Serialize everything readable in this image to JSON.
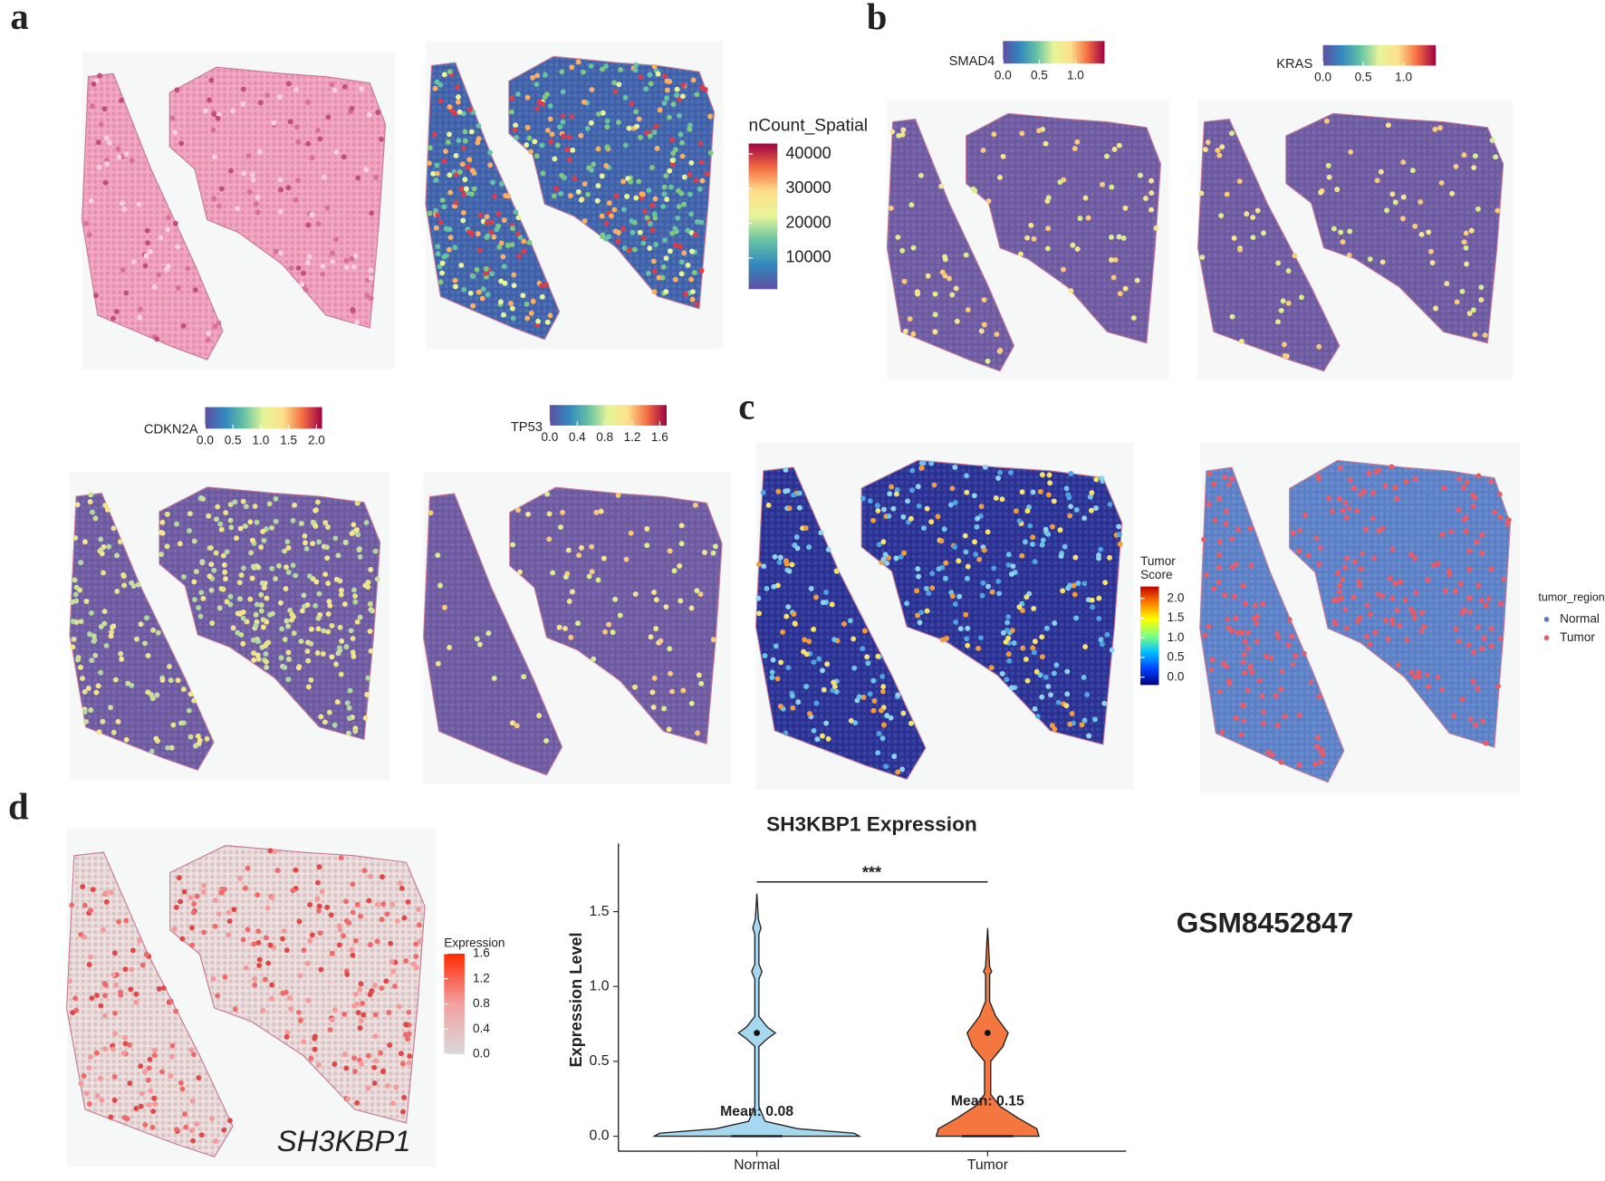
{
  "panel_labels": [
    "a",
    "b",
    "c",
    "d"
  ],
  "colorbars": [
    {
      "title": "nCount_Spatial",
      "orient": "v",
      "lim": [
        1000,
        43000
      ],
      "ticks": [
        10000,
        20000,
        30000,
        40000
      ],
      "colors": [
        "#5e4fa2",
        "#3288bd",
        "#66c2a5",
        "#e6f598",
        "#fee08b",
        "#f46d43",
        "#9e0142"
      ]
    },
    {
      "title": "SMAD4",
      "orient": "h",
      "lim": [
        0,
        1.4
      ],
      "ticks": [
        {
          "value": 0,
          "label": "0.0"
        },
        0.5,
        {
          "value": 1,
          "label": "1.0"
        }
      ],
      "colors": [
        "#5e4fa2",
        "#3288bd",
        "#66c2a5",
        "#e6f598",
        "#fee08b",
        "#f46d43",
        "#9e0142"
      ]
    },
    {
      "title": "KRAS",
      "orient": "h",
      "lim": [
        0,
        1.4
      ],
      "ticks": [
        {
          "value": 0,
          "label": "0.0"
        },
        0.5,
        {
          "value": 1,
          "label": "1.0"
        }
      ],
      "colors": [
        "#5e4fa2",
        "#3288bd",
        "#66c2a5",
        "#e6f598",
        "#fee08b",
        "#f46d43",
        "#9e0142"
      ]
    },
    {
      "title": "CDKN2A",
      "orient": "h",
      "lim": [
        0,
        2.1
      ],
      "ticks": [
        {
          "value": 0,
          "label": "0.0"
        },
        0.5,
        {
          "value": 1,
          "label": "1.0"
        },
        1.5,
        {
          "value": 2,
          "label": "2.0"
        }
      ],
      "colors": [
        "#5e4fa2",
        "#3288bd",
        "#66c2a5",
        "#e6f598",
        "#fee08b",
        "#f46d43",
        "#9e0142"
      ]
    },
    {
      "title": "TP53",
      "orient": "h",
      "lim": [
        0,
        1.7
      ],
      "ticks": [
        {
          "value": 0,
          "label": "0.0"
        },
        0.4,
        0.8,
        1.2,
        1.6
      ],
      "colors": [
        "#5e4fa2",
        "#3288bd",
        "#66c2a5",
        "#e6f598",
        "#fee08b",
        "#f46d43",
        "#9e0142"
      ]
    },
    {
      "title": [
        "Tumor",
        "Score"
      ],
      "orient": "v",
      "lim": [
        -0.2,
        2.3
      ],
      "ticks": [
        {
          "value": 0,
          "label": "0.0"
        },
        0.5,
        {
          "value": 1,
          "label": "1.0"
        },
        1.5,
        {
          "value": 2,
          "label": "2.0"
        }
      ],
      "colors": [
        "#00007f",
        "#0040ff",
        "#00c0ff",
        "#80ff80",
        "#ffff00",
        "#ff8000",
        "#c00000"
      ]
    },
    {
      "title": "Expression",
      "orient": "v",
      "lim": [
        0,
        1.6
      ],
      "ticks": [
        {
          "value": 0,
          "label": "0.0"
        },
        0.4,
        0.8,
        1.2,
        1.6
      ],
      "colors": [
        "#d9d9d9",
        "#f2a0a0",
        "#ff2a00"
      ]
    }
  ],
  "tumor_region": {
    "title": "tumor_region",
    "items": [
      {
        "name": "Normal",
        "color": "#5b7fc6"
      },
      {
        "name": "Tumor",
        "color": "#e85c6a"
      }
    ]
  },
  "map_label": "SH3KBP1",
  "sample_id": "GSM8452847",
  "chart_data": {
    "type": "violin",
    "title": "SH3KBP1 Expression",
    "y_label": "Expression Level",
    "categories": [
      "Normal",
      "Tumor"
    ],
    "colors": [
      "#a6d8f0",
      "#f4773f"
    ],
    "maxima": [
      1.62,
      1.39
    ],
    "points": [
      0.69,
      0.69
    ],
    "means": [
      0.08,
      0.15
    ],
    "mean_labels": [
      "Mean: 0.08",
      "Mean: 0.15"
    ],
    "significance": "***",
    "ylim": [
      -0.1,
      1.9
    ],
    "yticks": [
      {
        "value": 0,
        "label": "0.0"
      },
      0.5,
      {
        "value": 1,
        "label": "1.0"
      },
      1.5
    ]
  }
}
